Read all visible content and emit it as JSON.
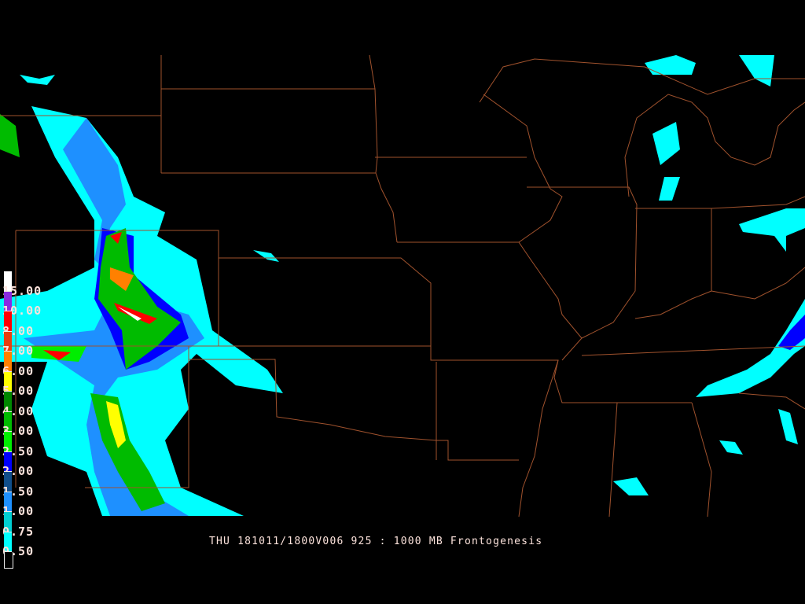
{
  "title": "THU 181011/1800V006 925 : 1000 MB Frontogenesis",
  "legend": {
    "levels": [
      {
        "label": "15.00",
        "color": "#ffffff"
      },
      {
        "label": "10.00",
        "color": "#8a2be2"
      },
      {
        "label": "8.00",
        "color": "#ff0000"
      },
      {
        "label": "7.00",
        "color": "#e84010"
      },
      {
        "label": "6.00",
        "color": "#ff8000"
      },
      {
        "label": "5.00",
        "color": "#ffff00"
      },
      {
        "label": "4.00",
        "color": "#008800"
      },
      {
        "label": "3.00",
        "color": "#00bb00"
      },
      {
        "label": "2.50",
        "color": "#00ee00"
      },
      {
        "label": "2.00",
        "color": "#0000ff"
      },
      {
        "label": "1.50",
        "color": "#104e8b"
      },
      {
        "label": "1.00",
        "color": "#1e90ff"
      },
      {
        "label": "0.75",
        "color": "#00ced1"
      },
      {
        "label": "0.50",
        "color": "#00ffff"
      }
    ],
    "below_color": "#000000"
  },
  "map": {
    "border_color": "#a0522d"
  }
}
